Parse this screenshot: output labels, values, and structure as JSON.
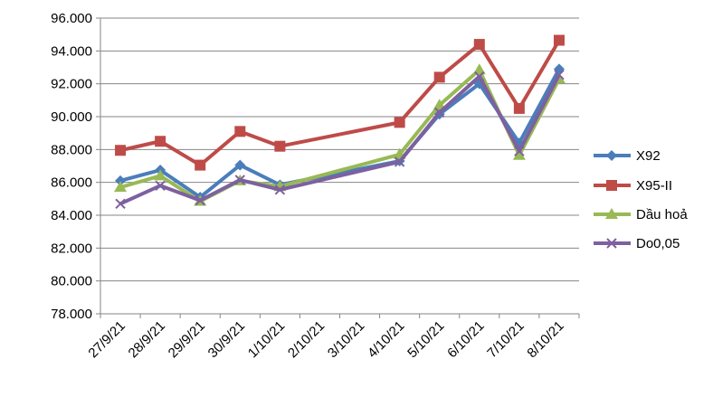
{
  "chart_data": {
    "type": "line",
    "title": "",
    "xlabel": "",
    "ylabel": "",
    "categories": [
      "27/9/21",
      "28/9/21",
      "29/9/21",
      "30/9/21",
      "1/10/21",
      "2/10/21",
      "3/10/21",
      "4/10/21",
      "5/10/21",
      "6/10/21",
      "7/10/21",
      "8/10/21"
    ],
    "ylim": [
      78000,
      96000
    ],
    "yticks": [
      78000,
      80000,
      82000,
      84000,
      86000,
      88000,
      90000,
      92000,
      94000,
      96000
    ],
    "ytick_labels": [
      "78.000",
      "80.000",
      "82.000",
      "84.000",
      "86.000",
      "88.000",
      "90.000",
      "92.000",
      "94.000",
      "96.000"
    ],
    "grid": "horizontal",
    "legend_position": "right",
    "series": [
      {
        "name": "X92",
        "color": "#4a7ebb",
        "marker": "diamond",
        "values": [
          86100,
          86750,
          85100,
          87050,
          85850,
          null,
          null,
          87300,
          90150,
          92000,
          88400,
          92900
        ]
      },
      {
        "name": "X95-II",
        "color": "#be4b48",
        "marker": "square",
        "values": [
          87950,
          88500,
          87050,
          89100,
          88200,
          null,
          null,
          89650,
          92400,
          94400,
          90500,
          94650
        ]
      },
      {
        "name": "Dầu hoả",
        "color": "#98b954",
        "marker": "triangle",
        "values": [
          85700,
          86400,
          84850,
          86100,
          85750,
          null,
          null,
          87700,
          90700,
          92850,
          87650,
          92300
        ]
      },
      {
        "name": "Do0,05",
        "color": "#7d60a0",
        "marker": "x",
        "values": [
          84700,
          85800,
          84900,
          86150,
          85550,
          null,
          null,
          87250,
          90250,
          92450,
          87900,
          92550
        ]
      }
    ]
  }
}
